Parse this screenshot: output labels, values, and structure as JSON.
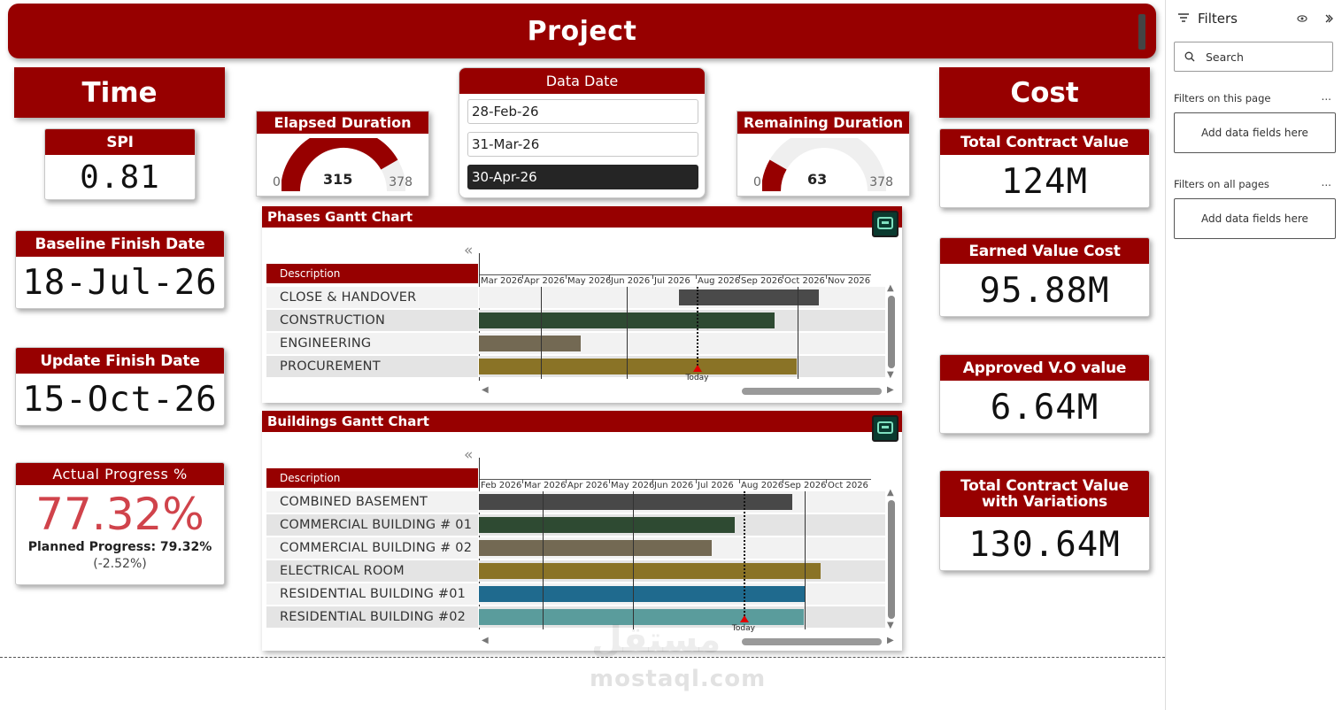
{
  "header": {
    "title": "Project"
  },
  "time": {
    "title": "Time",
    "spi": {
      "label": "SPI",
      "value": "0.81"
    },
    "baseline_finish": {
      "label": "Baseline Finish Date",
      "value": "18-Jul-26"
    },
    "update_finish": {
      "label": "Update Finish Date",
      "value": "15-Oct-26"
    },
    "actual_progress": {
      "label": "Actual Progress %",
      "value": "77.32%",
      "planned": "Planned Progress: 79.32%",
      "variance": "(-2.52%)",
      "value_color": "#d0434b"
    }
  },
  "cost": {
    "title": "Cost",
    "total_contract": {
      "label": "Total Contract Value",
      "value": "124M"
    },
    "earned_value": {
      "label": "Earned Value Cost",
      "value": "95.88M"
    },
    "approved_vo": {
      "label": "Approved V.O value",
      "value": "6.64M"
    },
    "total_with_variations": {
      "label": "Total Contract Value with Variations",
      "value": "130.64M"
    }
  },
  "elapsed": {
    "label": "Elapsed Duration",
    "min": "0",
    "max": "378",
    "value": "315",
    "fraction": 0.833
  },
  "remaining": {
    "label": "Remaining Duration",
    "min": "0",
    "max": "378",
    "value": "63",
    "fraction": 0.167
  },
  "data_date": {
    "label": "Data Date",
    "options": [
      "28-Feb-26",
      "31-Mar-26",
      "30-Apr-26"
    ],
    "selected": "30-Apr-26"
  },
  "phases_gantt": {
    "title": "Phases Gantt Chart",
    "collapse_icon": "«",
    "desc_header": "Description",
    "months": [
      "Mar 2026",
      "Apr 2026",
      "May 2026",
      "Jun 2026",
      "Jul 2026",
      "Aug 2026",
      "Sep 2026",
      "Oct 2026",
      "Nov 2026"
    ],
    "today_label": "Today",
    "today": 5.03,
    "rows": [
      {
        "label": "CLOSE & HANDOVER",
        "start": 4.61,
        "end": 7.84,
        "color": "#4a4a4a"
      },
      {
        "label": "CONSTRUCTION",
        "start": 0.0,
        "end": 6.82,
        "color": "#2e4a32"
      },
      {
        "label": "ENGINEERING",
        "start": 0.0,
        "end": 2.35,
        "color": "#736953"
      },
      {
        "label": "PROCUREMENT",
        "start": 0.0,
        "end": 7.33,
        "color": "#8a7326"
      }
    ],
    "gridlines": [
      1.43,
      3.41,
      7.35
    ]
  },
  "buildings_gantt": {
    "title": "Buildings Gantt Chart",
    "collapse_icon": "«",
    "desc_header": "Description",
    "months": [
      "Feb 2026",
      "Mar 2026",
      "Apr 2026",
      "May 2026",
      "Jun 2026",
      "Jul 2026",
      "Aug 2026",
      "Sep 2026",
      "Oct 2026"
    ],
    "today_label": "Today",
    "today": 6.1,
    "rows": [
      {
        "label": "COMBINED BASEMENT",
        "start": 0.0,
        "end": 7.22,
        "color": "#484848"
      },
      {
        "label": "COMMERCIAL BUILDING # 01",
        "start": 0.0,
        "end": 5.89,
        "color": "#2e4a32"
      },
      {
        "label": "COMMERCIAL BUILDING # 02",
        "start": 0.0,
        "end": 5.37,
        "color": "#736953"
      },
      {
        "label": "ELECTRICAL ROOM",
        "start": 0.0,
        "end": 7.87,
        "color": "#8a7326"
      },
      {
        "label": "RESIDENTIAL BUILDING #01",
        "start": 0.0,
        "end": 7.51,
        "color": "#1f6a8e"
      },
      {
        "label": "RESIDENTIAL BUILDING #02",
        "start": 0.0,
        "end": 7.48,
        "color": "#5a9c9c"
      }
    ],
    "gridlines": [
      1.47,
      3.55,
      7.51
    ]
  },
  "filters": {
    "title": "Filters",
    "search_placeholder": "Search",
    "this_page": "Filters on this page",
    "all_pages": "Filters on all pages",
    "add_fields": "Add data fields here",
    "more": "..."
  },
  "watermark": {
    "latin": "mostaql.com",
    "arabic": "مستقل"
  }
}
